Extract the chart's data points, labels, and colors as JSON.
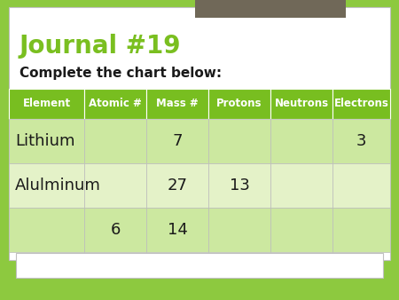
{
  "title": "Journal #19",
  "subtitle": "Complete the chart below:",
  "title_color": "#7abf20",
  "subtitle_color": "#1a1a1a",
  "bg_outer": "#8dc93f",
  "bg_slide": "#ffffff",
  "bg_gray_rect_color": "#706858",
  "header_bg": "#78be20",
  "header_text_color": "#ffffff",
  "row_bg_alt1": "#cce8a0",
  "row_bg_alt2": "#e4f2c8",
  "columns": [
    "Element",
    "Atomic #",
    "Mass #",
    "Protons",
    "Neutrons",
    "Electrons"
  ],
  "rows": [
    [
      "Lithium",
      "",
      "7",
      "",
      "",
      "3"
    ],
    [
      "Alulminum",
      "",
      "27",
      "13",
      "",
      ""
    ],
    [
      "",
      "6",
      "14",
      "",
      "",
      ""
    ]
  ],
  "header_font_size": 8.5,
  "cell_font_size": 13,
  "title_font_size": 20,
  "subtitle_font_size": 11,
  "figw": 4.5,
  "figh": 3.38,
  "dpi": 100
}
